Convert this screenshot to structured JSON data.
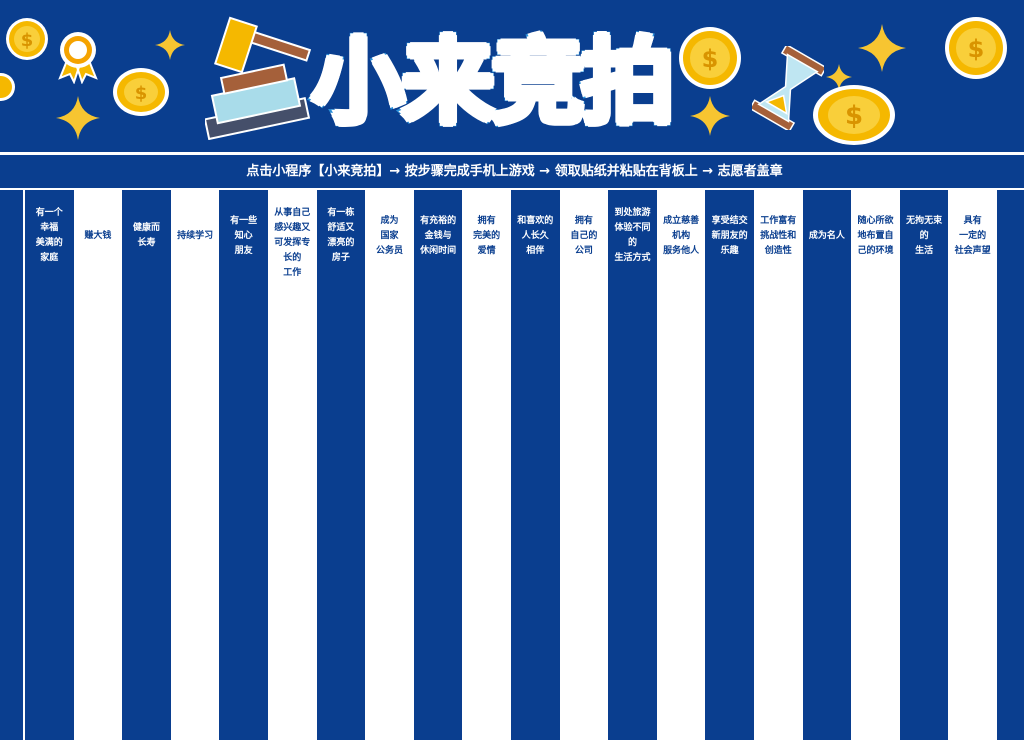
{
  "header": {
    "title": "小来竞拍"
  },
  "banner": {
    "text": "点击小程序【小来竞拍】→ 按步骤完成手机上游戏 → 领取贴纸并粘贴在背板上 → 志愿者盖章"
  },
  "colors": {
    "blue": "#0a3e8f",
    "title_stroke": "#2a8fd8",
    "coin": "#f5b800",
    "star": "#f7c531"
  },
  "icons": [
    "gavel-icon",
    "coin-icon",
    "award-badge-icon",
    "star-icon",
    "hourglass-icon"
  ],
  "columns": [
    {
      "lines": [
        "有一个",
        "幸福",
        "美满的",
        "家庭"
      ]
    },
    {
      "lines": [
        "赚大钱"
      ]
    },
    {
      "lines": [
        "健康而",
        "长寿"
      ]
    },
    {
      "lines": [
        "持续学习"
      ]
    },
    {
      "lines": [
        "有一些",
        "知心",
        "朋友"
      ]
    },
    {
      "lines": [
        "从事自己",
        "感兴趣又",
        "可发挥专",
        "长的",
        "工作"
      ]
    },
    {
      "lines": [
        "有一栋",
        "舒适又",
        "漂亮的",
        "房子"
      ]
    },
    {
      "lines": [
        "成为",
        "国家",
        "公务员"
      ]
    },
    {
      "lines": [
        "有充裕的",
        "金钱与",
        "休闲时间"
      ]
    },
    {
      "lines": [
        "拥有",
        "完美的",
        "爱情"
      ]
    },
    {
      "lines": [
        "和喜欢的",
        "人长久",
        "相伴"
      ]
    },
    {
      "lines": [
        "拥有",
        "自己的",
        "公司"
      ]
    },
    {
      "lines": [
        "到处旅游",
        "体验不同",
        "的",
        "生活方式"
      ]
    },
    {
      "lines": [
        "成立慈善",
        "机构",
        "服务他人"
      ]
    },
    {
      "lines": [
        "享受结交",
        "新朋友的",
        "乐趣"
      ]
    },
    {
      "lines": [
        "工作富有",
        "挑战性和",
        "创造性"
      ]
    },
    {
      "lines": [
        "成为名人"
      ]
    },
    {
      "lines": [
        "随心所欲",
        "地布置自",
        "己的环境"
      ]
    },
    {
      "lines": [
        "无拘无束",
        "的",
        "生活"
      ]
    },
    {
      "lines": [
        "具有",
        "一定的",
        "社会声望"
      ]
    }
  ]
}
